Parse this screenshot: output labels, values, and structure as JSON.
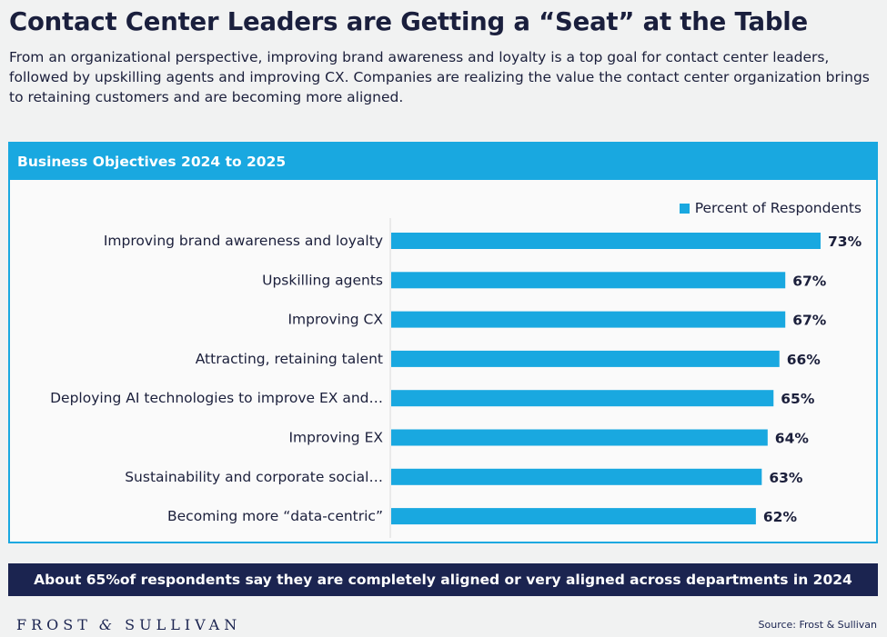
{
  "title": "Contact Center Leaders are Getting a “Seat” at the Table",
  "intro": "From an organizational perspective, improving brand awareness and loyalty is a top goal for contact center leaders, followed by upskilling agents and improving CX. Companies are realizing the value the contact center organization brings to retaining customers and are becoming more aligned.",
  "panel_title": "Business Objectives 2024 to 2025",
  "banner": "About 65%of respondents say they are completely aligned or very aligned across departments in 2024",
  "brand": {
    "left": "FROST",
    "amp": "&",
    "right": "SULLIVAN"
  },
  "source": "Source: Frost & Sullivan",
  "colors": {
    "accent": "#19a8e0",
    "navy": "#1b2450",
    "text": "#1b1f3b"
  },
  "chart_data": {
    "type": "bar",
    "orientation": "horizontal",
    "title": "Business Objectives 2024 to 2025",
    "categories": [
      "Improving brand awareness and loyalty",
      "Upskilling agents",
      "Improving CX",
      "Attracting, retaining talent",
      "Deploying AI technologies to improve EX and…",
      "Improving EX",
      "Sustainability and corporate social…",
      "Becoming more “data-centric”"
    ],
    "series": [
      {
        "name": "Percent of Respondents",
        "values": [
          73,
          67,
          67,
          66,
          65,
          64,
          63,
          62
        ]
      }
    ],
    "value_suffix": "%",
    "legend": "top-right",
    "xlim": [
      0,
      73
    ],
    "grid": false
  }
}
